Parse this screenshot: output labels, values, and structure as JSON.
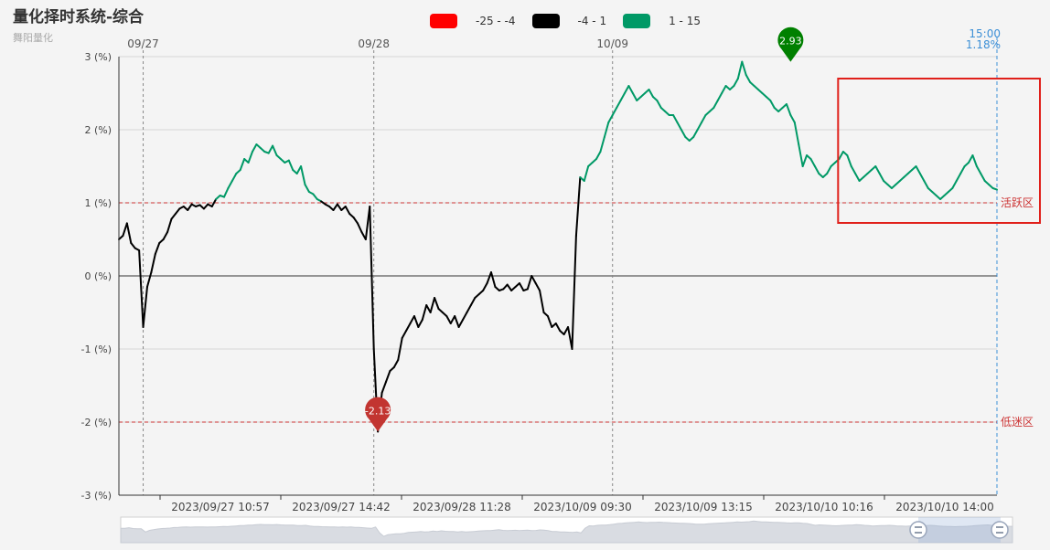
{
  "header": {
    "title": "量化择时系统-综合",
    "subtitle": "舞阳量化"
  },
  "legend": [
    {
      "label": "-25 - -4",
      "color": "#ff0000"
    },
    {
      "label": "-4 - 1",
      "color": "#000000"
    },
    {
      "label": "1 - 15",
      "color": "#009966"
    }
  ],
  "chart_data": {
    "type": "line",
    "title": "量化择时系统-综合",
    "ylim": [
      -3,
      3
    ],
    "y_ticks": [
      "3 (%)",
      "2 (%)",
      "1 (%)",
      "0 (%)",
      "-1 (%)",
      "-2 (%)",
      "-3 (%)"
    ],
    "y_tick_values": [
      3,
      2,
      1,
      0,
      -1,
      -2,
      -3
    ],
    "x_tick_labels": [
      "2023/09/27 10:57",
      "2023/09/27 14:42",
      "2023/09/28 11:28",
      "2023/10/09 09:30",
      "2023/10/09 13:15",
      "2023/10/10 10:16",
      "2023/10/10 14:00"
    ],
    "day_markers": [
      {
        "label": "09/27",
        "index": 6
      },
      {
        "label": "09/28",
        "index": 63
      },
      {
        "label": "10/09",
        "index": 122
      }
    ],
    "current_marker": {
      "time": "15:00",
      "value": "1.18%"
    },
    "threshold_lines": [
      {
        "value": 1,
        "label": "活跃区",
        "color": "#cc3333"
      },
      {
        "value": -2,
        "label": "低迷区",
        "color": "#cc3333"
      }
    ],
    "color_ranges": [
      {
        "min": -25,
        "max": -4,
        "color": "#ff0000"
      },
      {
        "min": -4,
        "max": 1,
        "color": "#000000"
      },
      {
        "min": 1,
        "max": 15,
        "color": "#009966"
      }
    ],
    "max_pin": {
      "label": "2.93",
      "index": 166,
      "value": 2.93,
      "color": "#008000"
    },
    "min_pin": {
      "label": "-2.13",
      "index": 64,
      "value": -2.13,
      "color": "#c23531"
    },
    "highlight_box_range": [
      180,
      233
    ],
    "series": [
      {
        "values": [
          0.5,
          0.55,
          0.72,
          0.45,
          0.38,
          0.35,
          -0.7,
          -0.15,
          0.05,
          0.3,
          0.45,
          0.5,
          0.6,
          0.78,
          0.85,
          0.92,
          0.95,
          0.9,
          0.98,
          0.95,
          0.97,
          0.92,
          0.98,
          0.95,
          1.05,
          1.1,
          1.08,
          1.2,
          1.3,
          1.4,
          1.45,
          1.6,
          1.55,
          1.7,
          1.8,
          1.75,
          1.7,
          1.68,
          1.78,
          1.65,
          1.6,
          1.55,
          1.58,
          1.45,
          1.4,
          1.5,
          1.25,
          1.15,
          1.12,
          1.05,
          1.02,
          0.98,
          0.95,
          0.9,
          0.98,
          0.9,
          0.95,
          0.85,
          0.8,
          0.72,
          0.6,
          0.5,
          0.95,
          -1.0,
          -2.13,
          -1.6,
          -1.45,
          -1.3,
          -1.25,
          -1.15,
          -0.85,
          -0.75,
          -0.65,
          -0.55,
          -0.7,
          -0.6,
          -0.4,
          -0.5,
          -0.3,
          -0.45,
          -0.5,
          -0.55,
          -0.65,
          -0.55,
          -0.7,
          -0.6,
          -0.5,
          -0.4,
          -0.3,
          -0.25,
          -0.2,
          -0.1,
          0.05,
          -0.15,
          -0.2,
          -0.18,
          -0.12,
          -0.2,
          -0.15,
          -0.1,
          -0.2,
          -0.18,
          0.0,
          -0.1,
          -0.2,
          -0.5,
          -0.55,
          -0.7,
          -0.65,
          -0.75,
          -0.8,
          -0.7,
          -1.0,
          0.55,
          1.35,
          1.3,
          1.5,
          1.55,
          1.6,
          1.7,
          1.9,
          2.1,
          2.2,
          2.3,
          2.4,
          2.5,
          2.6,
          2.5,
          2.4,
          2.45,
          2.5,
          2.55,
          2.45,
          2.4,
          2.3,
          2.25,
          2.2,
          2.2,
          2.1,
          2.0,
          1.9,
          1.85,
          1.9,
          2.0,
          2.1,
          2.2,
          2.25,
          2.3,
          2.4,
          2.5,
          2.6,
          2.55,
          2.6,
          2.7,
          2.93,
          2.75,
          2.65,
          2.6,
          2.55,
          2.5,
          2.45,
          2.4,
          2.3,
          2.25,
          2.3,
          2.35,
          2.2,
          2.1,
          1.8,
          1.5,
          1.65,
          1.6,
          1.5,
          1.4,
          1.35,
          1.4,
          1.5,
          1.55,
          1.6,
          1.7,
          1.65,
          1.5,
          1.4,
          1.3,
          1.35,
          1.4,
          1.45,
          1.5,
          1.4,
          1.3,
          1.25,
          1.2,
          1.25,
          1.3,
          1.35,
          1.4,
          1.45,
          1.5,
          1.4,
          1.3,
          1.2,
          1.15,
          1.1,
          1.05,
          1.1,
          1.15,
          1.2,
          1.3,
          1.4,
          1.5,
          1.55,
          1.65,
          1.5,
          1.4,
          1.3,
          1.25,
          1.2,
          1.18
        ]
      }
    ]
  }
}
